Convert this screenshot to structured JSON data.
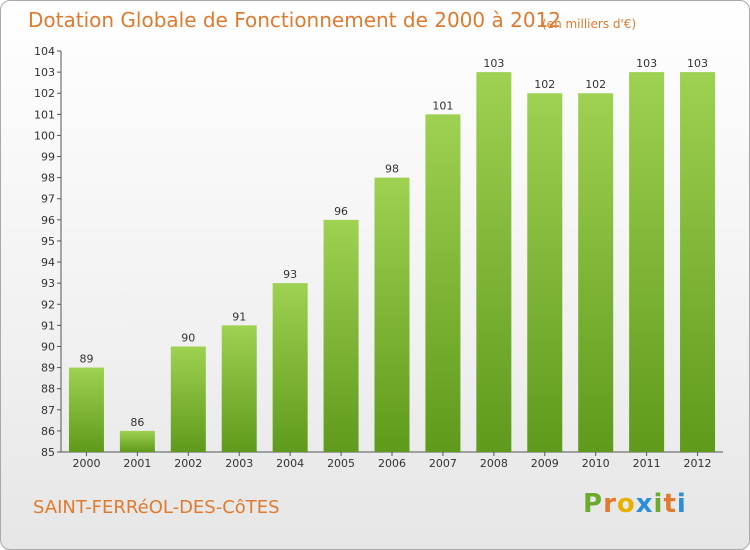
{
  "header": {
    "title": "Dotation Globale de Fonctionnement de 2000 à 2012",
    "subtitle": "(en milliers d'€)"
  },
  "footer": {
    "commune": "SAINT-FERRéOL-DES-CôTES",
    "logo": "Proxiti"
  },
  "chart_data": {
    "type": "bar",
    "title": "Dotation Globale de Fonctionnement de 2000 à 2012",
    "subtitle": "(en milliers d'€)",
    "categories": [
      "2000",
      "2001",
      "2002",
      "2003",
      "2004",
      "2005",
      "2006",
      "2007",
      "2008",
      "2009",
      "2010",
      "2011",
      "2012"
    ],
    "values": [
      89,
      86,
      90,
      91,
      93,
      96,
      98,
      101,
      103,
      102,
      102,
      103,
      103
    ],
    "ylim": [
      85,
      104
    ],
    "yticks": [
      85,
      86,
      87,
      88,
      89,
      90,
      91,
      92,
      93,
      94,
      95,
      96,
      97,
      98,
      99,
      100,
      101,
      102,
      103,
      104
    ],
    "grid": false,
    "colors": {
      "bar_top": "#9fd152",
      "bar_bottom": "#5f9a1c",
      "text": "#e07a2e"
    }
  }
}
